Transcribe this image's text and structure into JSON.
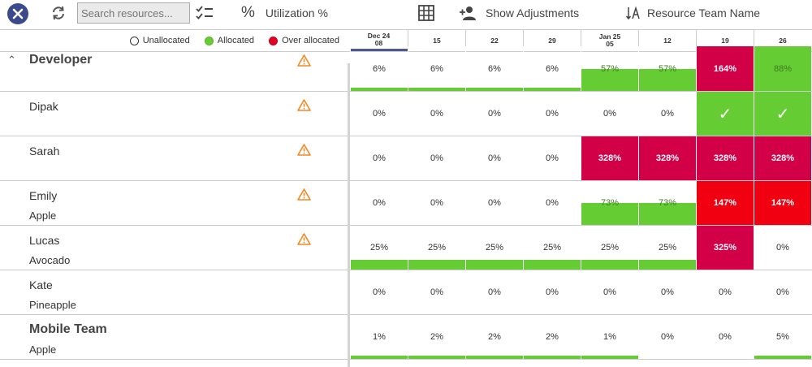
{
  "toolbar": {
    "search_placeholder": "Search resources...",
    "utilization_label": "Utilization %",
    "adjustments_label": "Show Adjustments",
    "sort_label": "Resource Team Name"
  },
  "legend": {
    "unallocated": "Unallocated",
    "allocated": "Allocated",
    "over_allocated": "Over allocated",
    "colors": {
      "allocated": "#66cc33",
      "over_allocated": "#e00022",
      "over_allocated_dark": "#d10047"
    }
  },
  "weeks": [
    {
      "month": "Dec 24",
      "day": "08"
    },
    {
      "month": "",
      "day": "15"
    },
    {
      "month": "",
      "day": "22"
    },
    {
      "month": "",
      "day": "29"
    },
    {
      "month": "Jan 25",
      "day": "05"
    },
    {
      "month": "",
      "day": "12"
    },
    {
      "month": "",
      "day": "19"
    },
    {
      "month": "",
      "day": "26"
    }
  ],
  "rows": [
    {
      "name": "Developer",
      "sub": "",
      "group": true,
      "warning": true,
      "cells": [
        {
          "text": "6%",
          "style": "bar"
        },
        {
          "text": "6%",
          "style": "bar"
        },
        {
          "text": "6%",
          "style": "bar"
        },
        {
          "text": "6%",
          "style": "bar"
        },
        {
          "text": "57%",
          "style": "green-tall"
        },
        {
          "text": "57%",
          "style": "green-tall"
        },
        {
          "text": "164%",
          "style": "crimson"
        },
        {
          "text": "88%",
          "style": "green"
        }
      ]
    },
    {
      "name": "Dipak",
      "sub": "",
      "group": false,
      "warning": true,
      "cells": [
        {
          "text": "0%",
          "style": ""
        },
        {
          "text": "0%",
          "style": ""
        },
        {
          "text": "0%",
          "style": ""
        },
        {
          "text": "0%",
          "style": ""
        },
        {
          "text": "0%",
          "style": ""
        },
        {
          "text": "0%",
          "style": ""
        },
        {
          "text": "✓",
          "style": "green-check"
        },
        {
          "text": "✓",
          "style": "green-check"
        }
      ]
    },
    {
      "name": "Sarah",
      "sub": "",
      "group": false,
      "warning": true,
      "cells": [
        {
          "text": "0%",
          "style": ""
        },
        {
          "text": "0%",
          "style": ""
        },
        {
          "text": "0%",
          "style": ""
        },
        {
          "text": "0%",
          "style": ""
        },
        {
          "text": "328%",
          "style": "crimson"
        },
        {
          "text": "328%",
          "style": "crimson"
        },
        {
          "text": "328%",
          "style": "crimson"
        },
        {
          "text": "328%",
          "style": "crimson"
        }
      ]
    },
    {
      "name": "Emily",
      "sub": "Apple",
      "group": false,
      "warning": true,
      "cells": [
        {
          "text": "0%",
          "style": ""
        },
        {
          "text": "0%",
          "style": ""
        },
        {
          "text": "0%",
          "style": ""
        },
        {
          "text": "0%",
          "style": ""
        },
        {
          "text": "73%",
          "style": "green-tall"
        },
        {
          "text": "73%",
          "style": "green-tall"
        },
        {
          "text": "147%",
          "style": "red"
        },
        {
          "text": "147%",
          "style": "red"
        }
      ]
    },
    {
      "name": "Lucas",
      "sub": "Avocado",
      "group": false,
      "warning": true,
      "cells": [
        {
          "text": "25%",
          "style": "bar-tall"
        },
        {
          "text": "25%",
          "style": "bar-tall"
        },
        {
          "text": "25%",
          "style": "bar-tall"
        },
        {
          "text": "25%",
          "style": "bar-tall"
        },
        {
          "text": "25%",
          "style": "bar-tall"
        },
        {
          "text": "25%",
          "style": "bar-tall"
        },
        {
          "text": "325%",
          "style": "crimson"
        },
        {
          "text": "0%",
          "style": ""
        }
      ]
    },
    {
      "name": "Kate",
      "sub": "Pineapple",
      "group": false,
      "warning": false,
      "cells": [
        {
          "text": "0%",
          "style": ""
        },
        {
          "text": "0%",
          "style": ""
        },
        {
          "text": "0%",
          "style": ""
        },
        {
          "text": "0%",
          "style": ""
        },
        {
          "text": "0%",
          "style": ""
        },
        {
          "text": "0%",
          "style": ""
        },
        {
          "text": "0%",
          "style": ""
        },
        {
          "text": "0%",
          "style": ""
        }
      ]
    },
    {
      "name": "Mobile Team",
      "sub": "Apple",
      "group": true,
      "warning": false,
      "cells": [
        {
          "text": "1%",
          "style": "bar"
        },
        {
          "text": "2%",
          "style": "bar"
        },
        {
          "text": "2%",
          "style": "bar"
        },
        {
          "text": "2%",
          "style": "bar"
        },
        {
          "text": "1%",
          "style": "bar"
        },
        {
          "text": "0%",
          "style": ""
        },
        {
          "text": "0%",
          "style": ""
        },
        {
          "text": "5%",
          "style": "bar"
        }
      ]
    }
  ]
}
